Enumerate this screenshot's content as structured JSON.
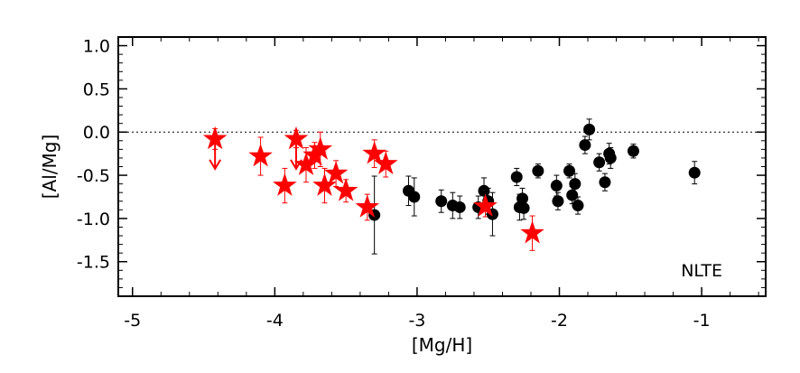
{
  "chart_data": {
    "type": "scatter",
    "title": "",
    "xlabel": "[Mg/H]",
    "ylabel": "[Al/Mg]",
    "xlim": [
      -5.1,
      -0.55
    ],
    "ylim": [
      -1.9,
      1.1
    ],
    "x_ticks": [
      -5,
      -4,
      -3,
      -2,
      -1
    ],
    "x_tick_labels": [
      "-5",
      "-4",
      "-3",
      "-2",
      "-1"
    ],
    "y_ticks": [
      1.0,
      0.5,
      0.0,
      -0.5,
      -1.0,
      -1.5
    ],
    "y_tick_labels": [
      "1.0",
      "0.5",
      "0.0",
      "-0.5",
      "-1.0",
      "-1.5"
    ],
    "reference_line": {
      "y": 0.0,
      "style": "dotted"
    },
    "annotation": "NLTE",
    "grid": false,
    "colors": {
      "red_series": "#ff0000",
      "black_series": "#000000"
    },
    "series": [
      {
        "marker": "star",
        "color": "#ff0000",
        "points": [
          {
            "x": -4.42,
            "y": -0.08,
            "err": 0.12,
            "upper_limit": true
          },
          {
            "x": -4.1,
            "y": -0.28,
            "err": 0.22
          },
          {
            "x": -3.93,
            "y": -0.62,
            "err": 0.2
          },
          {
            "x": -3.85,
            "y": -0.08,
            "err": 0.1,
            "upper_limit": true
          },
          {
            "x": -3.78,
            "y": -0.38,
            "err": 0.2
          },
          {
            "x": -3.72,
            "y": -0.27,
            "err": 0.15
          },
          {
            "x": -3.68,
            "y": -0.2,
            "err": 0.2
          },
          {
            "x": -3.65,
            "y": -0.62,
            "err": 0.2
          },
          {
            "x": -3.57,
            "y": -0.48,
            "err": 0.15
          },
          {
            "x": -3.5,
            "y": -0.68,
            "err": 0.13
          },
          {
            "x": -3.35,
            "y": -0.87,
            "err": 0.15
          },
          {
            "x": -3.3,
            "y": -0.25,
            "err": 0.16
          },
          {
            "x": -3.22,
            "y": -0.37,
            "err": 0.15
          },
          {
            "x": -2.52,
            "y": -0.86,
            "err": 0.12
          },
          {
            "x": -2.19,
            "y": -1.17,
            "err": 0.2
          }
        ]
      },
      {
        "marker": "circle",
        "color": "#000000",
        "points": [
          {
            "x": -3.3,
            "y": -0.96,
            "err": 0.45
          },
          {
            "x": -3.06,
            "y": -0.68,
            "err": 0.17
          },
          {
            "x": -3.02,
            "y": -0.75,
            "err": 0.22
          },
          {
            "x": -2.83,
            "y": -0.8,
            "err": 0.13
          },
          {
            "x": -2.75,
            "y": -0.85,
            "err": 0.15
          },
          {
            "x": -2.7,
            "y": -0.87,
            "err": 0.13
          },
          {
            "x": -2.57,
            "y": -0.87,
            "err": 0.13
          },
          {
            "x": -2.53,
            "y": -0.68,
            "err": 0.15
          },
          {
            "x": -2.5,
            "y": -0.8,
            "err": 0.15
          },
          {
            "x": -2.47,
            "y": -0.95,
            "err": 0.25
          },
          {
            "x": -2.3,
            "y": -0.52,
            "err": 0.1
          },
          {
            "x": -2.28,
            "y": -0.87,
            "err": 0.15
          },
          {
            "x": -2.26,
            "y": -0.77,
            "err": 0.12
          },
          {
            "x": -2.25,
            "y": -0.88,
            "err": 0.13
          },
          {
            "x": -2.15,
            "y": -0.45,
            "err": 0.08
          },
          {
            "x": -2.02,
            "y": -0.62,
            "err": 0.12
          },
          {
            "x": -2.01,
            "y": -0.8,
            "err": 0.1
          },
          {
            "x": -1.93,
            "y": -0.45,
            "err": 0.08
          },
          {
            "x": -1.91,
            "y": -0.73,
            "err": 0.1
          },
          {
            "x": -1.89,
            "y": -0.6,
            "err": 0.12
          },
          {
            "x": -1.87,
            "y": -0.85,
            "err": 0.1
          },
          {
            "x": -1.82,
            "y": -0.15,
            "err": 0.1
          },
          {
            "x": -1.79,
            "y": 0.03,
            "err": 0.12
          },
          {
            "x": -1.72,
            "y": -0.35,
            "err": 0.1
          },
          {
            "x": -1.68,
            "y": -0.58,
            "err": 0.1
          },
          {
            "x": -1.65,
            "y": -0.25,
            "err": 0.12
          },
          {
            "x": -1.64,
            "y": -0.3,
            "err": 0.12
          },
          {
            "x": -1.48,
            "y": -0.22,
            "err": 0.08
          },
          {
            "x": -1.05,
            "y": -0.47,
            "err": 0.13
          }
        ]
      }
    ]
  }
}
